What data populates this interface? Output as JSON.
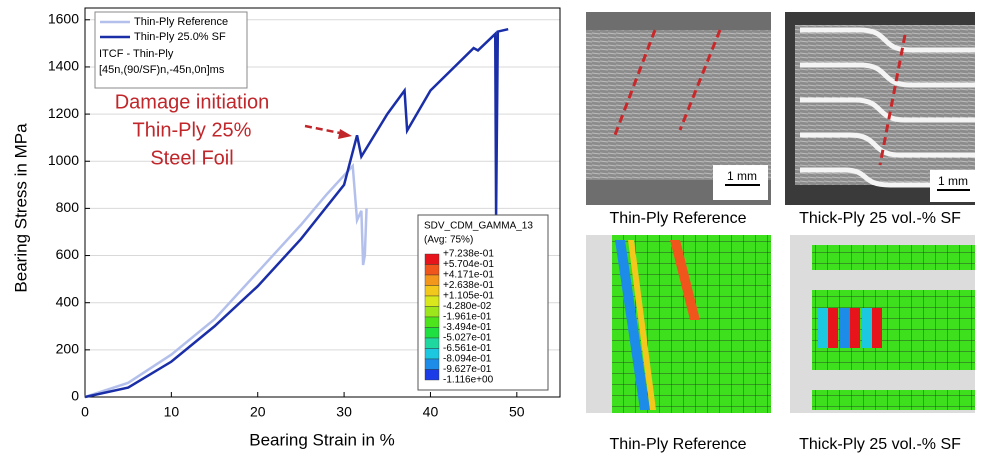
{
  "chart_data": {
    "type": "line",
    "x_label": "Bearing Strain in %",
    "y_label": "Bearing Stress in MPa",
    "xlim": [
      0,
      55
    ],
    "ylim": [
      0,
      1650
    ],
    "xticks": [
      0,
      10,
      20,
      30,
      40,
      50
    ],
    "yticks": [
      0,
      200,
      400,
      600,
      800,
      1000,
      1200,
      1400,
      1600
    ],
    "grid": true,
    "series": [
      {
        "name": "Thin-Ply Reference",
        "color": "#b4c0ec",
        "x": [
          0,
          5,
          10,
          15,
          20,
          25,
          28,
          31,
          31.5,
          32,
          32.2,
          32.4,
          32.6
        ],
        "values": [
          0,
          60,
          180,
          330,
          530,
          730,
          860,
          980,
          750,
          790,
          560,
          600,
          800
        ]
      },
      {
        "name": "Thin-Ply 25.0% SF",
        "color": "#1a2ea8",
        "x": [
          0,
          5,
          10,
          15,
          20,
          25,
          30,
          31.5,
          32,
          35,
          37,
          37.3,
          40,
          45,
          45.5,
          47.5,
          47.6,
          47.8,
          49
        ],
        "values": [
          0,
          40,
          150,
          300,
          470,
          670,
          900,
          1110,
          1020,
          1200,
          1300,
          1130,
          1300,
          1480,
          1470,
          1540,
          770,
          1550,
          1560
        ]
      }
    ],
    "legend_note": [
      "ITCF - Thin-Ply",
      "[45n,(90/SF)n,-45n,0n]ms"
    ],
    "annotation": {
      "lines": [
        "Damage initiation",
        "Thin-Ply 25%",
        "Steel Foil"
      ],
      "color": "#c0262a"
    },
    "contour_legend": {
      "title": "SDV_CDM_GAMMA_13",
      "subtitle": "(Avg: 75%)",
      "labels": [
        "+7.238e-01",
        "+5.704e-01",
        "+4.171e-01",
        "+2.638e-01",
        "+1.105e-01",
        "-4.280e-02",
        "-1.961e-01",
        "-3.494e-01",
        "-5.027e-01",
        "-6.561e-01",
        "-8.094e-01",
        "-9.627e-01",
        "-1.116e+00"
      ],
      "colors": [
        "#e8141c",
        "#f0561c",
        "#f2961c",
        "#f2c81c",
        "#d8e81c",
        "#9ee61c",
        "#4ee41c",
        "#1ee040",
        "#1ed8a0",
        "#1cc8e0",
        "#1c8ce8",
        "#1c3ce8",
        "#1c14c8"
      ]
    }
  },
  "panels": {
    "captions": [
      "Thin-Ply Reference",
      "Thick-Ply 25 vol.-% SF",
      "Thin-Ply Reference",
      "Thick-Ply 25 vol.-% SF"
    ],
    "scale_bar": "1 mm"
  }
}
